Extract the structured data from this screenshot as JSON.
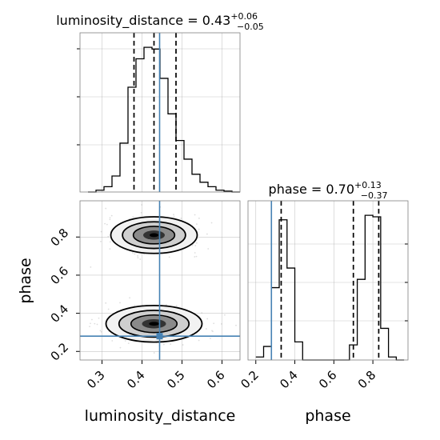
{
  "chart_data": {
    "type": "corner",
    "parameters": [
      "luminosity_distance",
      "phase"
    ],
    "truth": {
      "luminosity_distance": 0.44,
      "phase": 0.28
    },
    "panels": [
      {
        "id": "hist-luminosity_distance",
        "type": "step-histogram",
        "title": {
          "name": "luminosity_distance",
          "value": "0.43",
          "plus": "+0.06",
          "minus": "−0.05"
        },
        "xlim": [
          0.245,
          0.645
        ],
        "bin_edges": [
          0.265,
          0.285,
          0.305,
          0.325,
          0.345,
          0.365,
          0.385,
          0.405,
          0.425,
          0.445,
          0.465,
          0.485,
          0.505,
          0.525,
          0.545,
          0.565,
          0.585,
          0.605,
          0.625,
          0.645
        ],
        "counts": [
          0,
          2,
          6,
          18,
          55,
          118,
          150,
          163,
          161,
          128,
          88,
          58,
          37,
          20,
          11,
          6,
          2,
          1,
          0
        ],
        "quantiles": [
          0.38,
          0.43,
          0.485
        ],
        "truth": 0.444
      },
      {
        "id": "hist-phase",
        "type": "step-histogram",
        "title": {
          "name": "phase",
          "value": "0.70",
          "plus": "+0.13",
          "minus": "−0.37"
        },
        "xlim": [
          0.16,
          0.98
        ],
        "xticks": [
          0.2,
          0.4,
          0.6,
          0.8
        ],
        "bin_edges": [
          0.2,
          0.24,
          0.28,
          0.32,
          0.36,
          0.4,
          0.44,
          0.48,
          0.52,
          0.56,
          0.6,
          0.64,
          0.68,
          0.72,
          0.76,
          0.8,
          0.84,
          0.88,
          0.92,
          0.96
        ],
        "counts": [
          4,
          18,
          96,
          186,
          122,
          24,
          0,
          0,
          0,
          0,
          0,
          0,
          20,
          107,
          192,
          190,
          42,
          4,
          0
        ],
        "quantiles": [
          0.33,
          0.7,
          0.83
        ],
        "truth": 0.28
      },
      {
        "id": "joint-luminosity_distance-phase",
        "type": "2d-density-contour",
        "xlim": [
          0.245,
          0.645
        ],
        "ylim": [
          0.155,
          0.99
        ],
        "xticks": [
          0.3,
          0.4,
          0.5,
          0.6
        ],
        "yticks": [
          0.2,
          0.4,
          0.6,
          0.8
        ],
        "modes": [
          {
            "x": 0.43,
            "y": 0.81,
            "sx": 0.045,
            "sy": 0.04
          },
          {
            "x": 0.43,
            "y": 0.345,
            "sx": 0.05,
            "sy": 0.04
          }
        ],
        "truth": [
          0.444,
          0.28
        ]
      }
    ],
    "xlabels": [
      "luminosity_distance",
      "phase"
    ],
    "ylabel": "phase",
    "colors": {
      "hist": "#000000",
      "truth": "#4682b4",
      "grid": "#b0b0b0",
      "scatter": "#a0a0a0"
    }
  }
}
